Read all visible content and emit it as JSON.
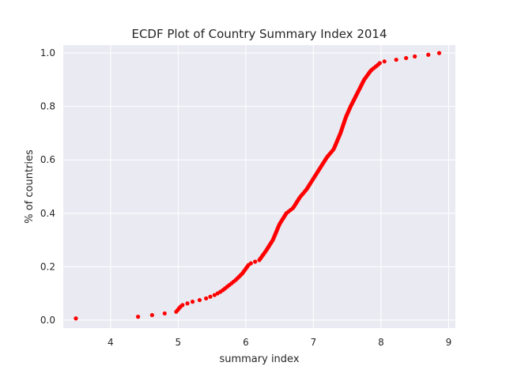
{
  "chart_data": {
    "type": "scatter",
    "title": "ECDF Plot of Country Summary Index 2014",
    "xlabel": "summary index",
    "ylabel": "% of countries",
    "xlim": [
      3.3,
      9.1
    ],
    "ylim": [
      -0.03,
      1.03
    ],
    "xticks": [
      "4",
      "5",
      "6",
      "7",
      "8",
      "9"
    ],
    "yticks": [
      "0.0",
      "0.2",
      "0.4",
      "0.6",
      "0.8",
      "1.0"
    ],
    "grid": true,
    "marker_color": "#ff0000",
    "background_color": "#eaeaf2",
    "cdf_knots": [
      [
        3.45,
        0.006
      ],
      [
        4.48,
        0.013
      ],
      [
        4.62,
        0.019
      ],
      [
        4.8,
        0.025
      ],
      [
        4.97,
        0.031
      ],
      [
        5.05,
        0.055
      ],
      [
        5.2,
        0.068
      ],
      [
        5.4,
        0.08
      ],
      [
        5.55,
        0.095
      ],
      [
        5.65,
        0.11
      ],
      [
        5.75,
        0.13
      ],
      [
        5.85,
        0.15
      ],
      [
        5.95,
        0.175
      ],
      [
        6.05,
        0.21
      ],
      [
        6.2,
        0.225
      ],
      [
        6.3,
        0.26
      ],
      [
        6.4,
        0.3
      ],
      [
        6.5,
        0.36
      ],
      [
        6.6,
        0.4
      ],
      [
        6.7,
        0.42
      ],
      [
        6.8,
        0.46
      ],
      [
        6.9,
        0.49
      ],
      [
        7.0,
        0.53
      ],
      [
        7.1,
        0.57
      ],
      [
        7.2,
        0.61
      ],
      [
        7.3,
        0.64
      ],
      [
        7.4,
        0.7
      ],
      [
        7.48,
        0.76
      ],
      [
        7.55,
        0.8
      ],
      [
        7.65,
        0.85
      ],
      [
        7.75,
        0.9
      ],
      [
        7.85,
        0.935
      ],
      [
        7.95,
        0.955
      ],
      [
        8.0,
        0.967
      ],
      [
        8.2,
        0.974
      ],
      [
        8.35,
        0.98
      ],
      [
        8.45,
        0.986
      ],
      [
        8.68,
        0.993
      ],
      [
        8.86,
        1.0
      ]
    ],
    "n_points": 160
  }
}
